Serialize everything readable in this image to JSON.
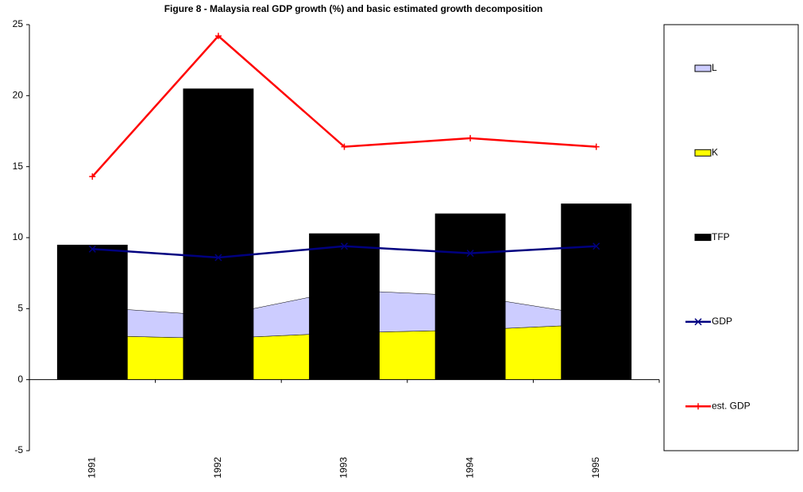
{
  "chart_data": {
    "type": "combo",
    "title": "Figure 8 - Malaysia real GDP growth (%) and basic estimated growth decomposition",
    "categories": [
      "1991",
      "1992",
      "1993",
      "1994",
      "1995"
    ],
    "series": [
      {
        "name": "L",
        "kind": "area",
        "color": "#ccccff",
        "values": [
          2.0,
          1.6,
          3.0,
          2.4,
          0.6
        ]
      },
      {
        "name": "K",
        "kind": "area",
        "color": "#ffff00",
        "values": [
          3.1,
          2.9,
          3.3,
          3.5,
          3.9
        ]
      },
      {
        "name": "TFP",
        "kind": "bar",
        "color": "#000000",
        "values": [
          9.5,
          20.5,
          10.3,
          11.7,
          12.4
        ]
      },
      {
        "name": "GDP",
        "kind": "line",
        "marker": "x",
        "color": "#000080",
        "values": [
          9.2,
          8.6,
          9.4,
          8.9,
          9.4
        ]
      },
      {
        "name": "est. GDP",
        "kind": "line",
        "marker": "+",
        "color": "#ff0000",
        "values": [
          14.3,
          24.2,
          16.4,
          17.0,
          16.4
        ]
      }
    ],
    "ylim": [
      -5,
      25
    ],
    "yticks": [
      -5,
      0,
      5,
      10,
      15,
      20,
      25
    ],
    "legend_position": "right"
  }
}
